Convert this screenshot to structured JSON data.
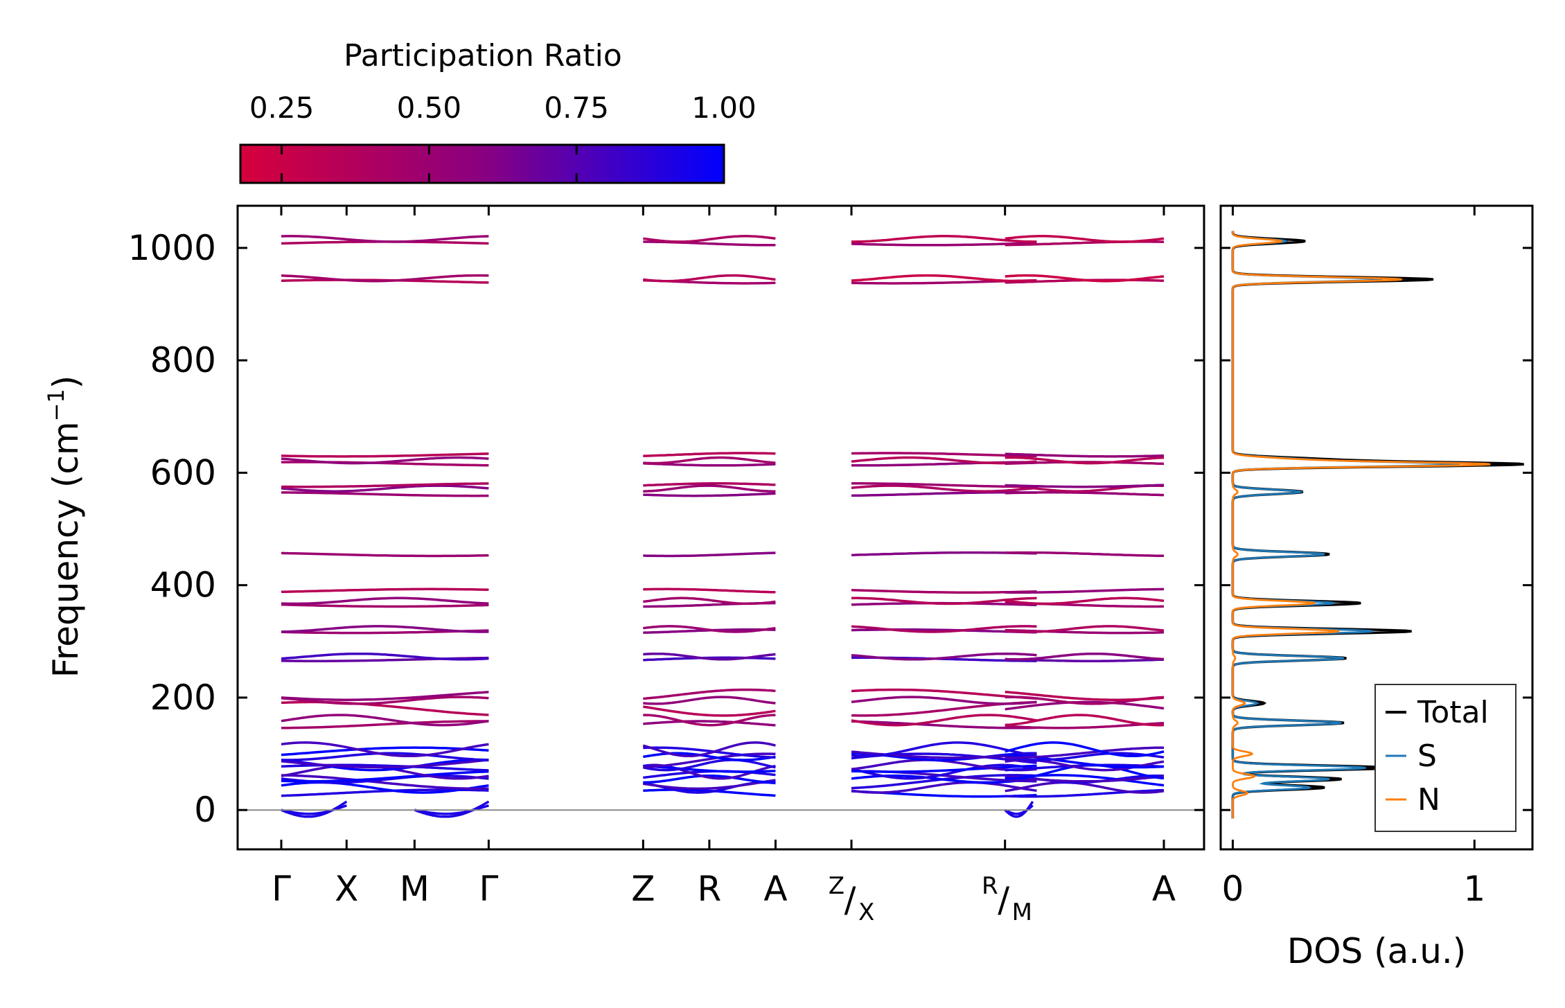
{
  "chart_data": [
    {
      "type": "line",
      "subtype": "phonon-band-structure",
      "ylabel_main": "Frequency (cm",
      "ylabel_sup": "−1",
      "ylabel_tail": ")",
      "ylim": [
        -70,
        1075
      ],
      "yticks": [
        0,
        200,
        400,
        600,
        800,
        1000
      ],
      "zero_line": true,
      "colorbar": {
        "label": "Participation Ratio",
        "ticks": [
          "0.25",
          "0.50",
          "0.75",
          "1.00"
        ],
        "tick_values": [
          0.25,
          0.5,
          0.75,
          1.0
        ],
        "range": [
          0.18,
          1.0
        ],
        "colors": [
          "#d6003c",
          "#8a0080",
          "#0000ff"
        ],
        "placement": "top-left"
      },
      "kpath": [
        {
          "label": "Γ"
        },
        {
          "label": "X"
        },
        {
          "label": "M"
        },
        {
          "label": "Γ"
        },
        {
          "label": "Z"
        },
        {
          "label": "R"
        },
        {
          "label": "A"
        },
        {
          "label": "Z/X",
          "top": "Z",
          "bottom": "X"
        },
        {
          "label": "R/M",
          "top": "R",
          "bottom": "M"
        },
        {
          "label": "A"
        }
      ],
      "segments": [
        [
          0,
          3
        ],
        [
          4,
          6
        ],
        [
          7,
          7
        ],
        [
          8,
          9
        ]
      ],
      "kpath_fractions": [
        0,
        0.074,
        0.151,
        0.235,
        0.41,
        0.485,
        0.56,
        0.646,
        0.82,
        1.0
      ],
      "band_groups": [
        {
          "freqs": [
            1008,
            1016
          ],
          "pr": 0.4
        },
        {
          "freqs": [
            940,
            946
          ],
          "pr": 0.35
        },
        {
          "freqs": [
            616,
            622,
            632
          ],
          "pr": 0.45
        },
        {
          "freqs": [
            562,
            572,
            578
          ],
          "pr": 0.5
        },
        {
          "freqs": [
            455
          ],
          "pr": 0.5
        },
        {
          "freqs": [
            365,
            372,
            390
          ],
          "pr": 0.45
        },
        {
          "freqs": [
            318,
            322
          ],
          "pr": 0.5
        },
        {
          "freqs": [
            268,
            273
          ],
          "pr": 0.7
        },
        {
          "freqs": [
            152,
            160,
            180,
            195,
            205
          ],
          "pr": 0.45
        },
        {
          "freqs": [
            30,
            40,
            50,
            55,
            60,
            68,
            74,
            80,
            88,
            95,
            102,
            108
          ],
          "pr": 0.9
        }
      ],
      "acoustic_dip_cm1": -15
    },
    {
      "type": "line",
      "subtype": "density-of-states",
      "xlabel": "DOS (a.u.)",
      "xticks": [
        "0",
        "1"
      ],
      "xlim": [
        -0.05,
        1.24
      ],
      "ylim": [
        -70,
        1075
      ],
      "series": [
        {
          "name": "Total",
          "color": "#000000",
          "peaks": [
            [
              1012,
              0.3
            ],
            [
              944,
              0.83
            ],
            [
              624,
              0.31
            ],
            [
              615,
              1.18
            ],
            [
              566,
              0.29
            ],
            [
              455,
              0.4
            ],
            [
              368,
              0.53
            ],
            [
              318,
              0.74
            ],
            [
              270,
              0.47
            ],
            [
              190,
              0.13
            ],
            [
              155,
              0.46
            ],
            [
              75,
              0.65
            ],
            [
              55,
              0.45
            ],
            [
              40,
              0.38
            ]
          ]
        },
        {
          "name": "S",
          "color": "#1f77b4",
          "peaks": [
            [
              1012,
              0.22
            ],
            [
              944,
              0.62
            ],
            [
              624,
              0.24
            ],
            [
              615,
              0.92
            ],
            [
              566,
              0.28
            ],
            [
              455,
              0.38
            ],
            [
              368,
              0.42
            ],
            [
              318,
              0.58
            ],
            [
              270,
              0.46
            ],
            [
              190,
              0.1
            ],
            [
              155,
              0.45
            ],
            [
              75,
              0.55
            ],
            [
              55,
              0.4
            ],
            [
              40,
              0.32
            ]
          ]
        },
        {
          "name": "N",
          "color": "#ff7f0e",
          "peaks": [
            [
              1012,
              0.2
            ],
            [
              944,
              0.7
            ],
            [
              624,
              0.2
            ],
            [
              615,
              1.05
            ],
            [
              566,
              0.02
            ],
            [
              455,
              0.02
            ],
            [
              368,
              0.34
            ],
            [
              318,
              0.44
            ],
            [
              270,
              0.01
            ],
            [
              190,
              0.05
            ],
            [
              155,
              0.02
            ],
            [
              100,
              0.08
            ],
            [
              60,
              0.09
            ],
            [
              30,
              0.06
            ]
          ]
        }
      ],
      "legend_position": "bottom-right"
    }
  ]
}
